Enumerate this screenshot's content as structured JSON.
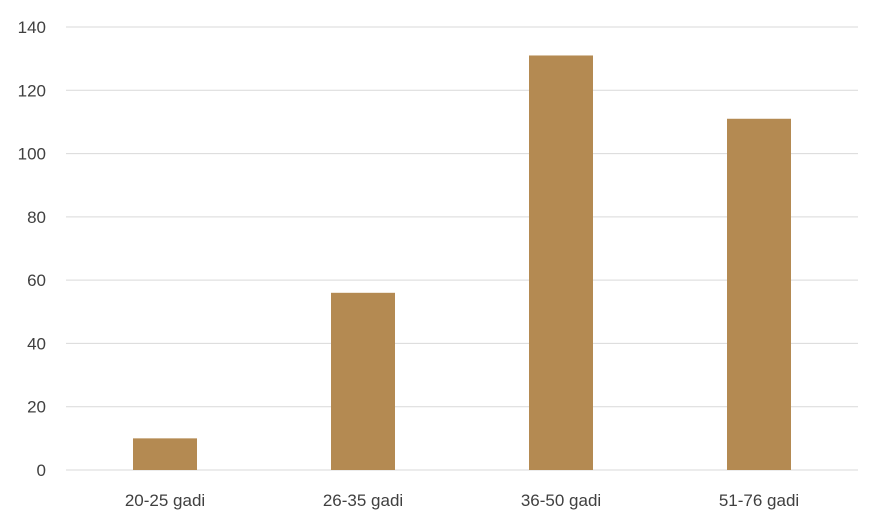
{
  "chart_data": {
    "type": "bar",
    "categories": [
      "20-25 gadi",
      "26-35 gadi",
      "36-50 gadi",
      "51-76 gadi"
    ],
    "values": [
      10,
      56,
      131,
      111
    ],
    "ylim": [
      0,
      140
    ],
    "yticks": [
      0,
      20,
      40,
      60,
      80,
      100,
      120,
      140
    ],
    "grid": true,
    "legend": "none",
    "colors": {
      "bar": "#B48A52",
      "grid": "#D9D9D9",
      "text": "#404040"
    }
  }
}
